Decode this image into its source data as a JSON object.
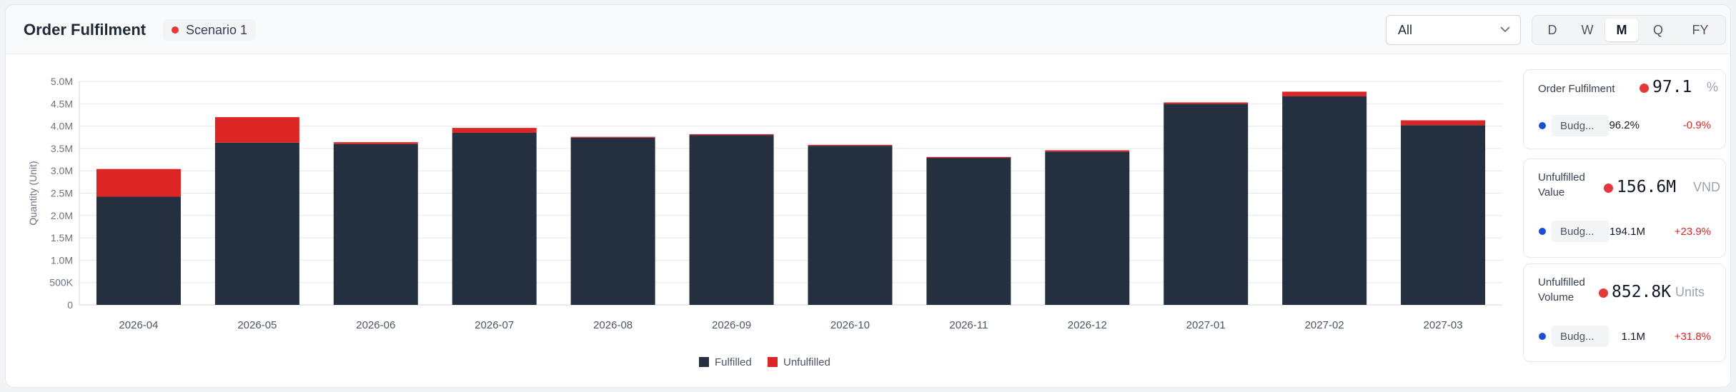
{
  "header": {
    "title": "Order Fulfilment",
    "scenario_label": "Scenario 1",
    "filter_value": "All",
    "periods": [
      "D",
      "W",
      "M",
      "Q",
      "FY"
    ],
    "active_period": "M"
  },
  "colors": {
    "fulfilled": "#243040",
    "unfulfilled": "#dc2626",
    "scenario_dot": "#e5383b",
    "budget_dot": "#1d4ed8",
    "delta_negative": "#dc2626"
  },
  "chart_data": {
    "type": "bar",
    "stacked": true,
    "categories": [
      "2026-04",
      "2026-05",
      "2026-06",
      "2026-07",
      "2026-08",
      "2026-09",
      "2026-10",
      "2026-11",
      "2026-12",
      "2027-01",
      "2027-02",
      "2027-03"
    ],
    "series": [
      {
        "name": "Fulfilled",
        "color": "#243040",
        "values": [
          2.42,
          3.63,
          3.6,
          3.85,
          3.74,
          3.8,
          3.56,
          3.29,
          3.43,
          4.5,
          4.67,
          4.02
        ]
      },
      {
        "name": "Unfulfilled",
        "color": "#dc2626",
        "values": [
          0.62,
          0.57,
          0.04,
          0.11,
          0.02,
          0.02,
          0.02,
          0.02,
          0.03,
          0.03,
          0.1,
          0.11
        ]
      }
    ],
    "ylabel": "Quantity (Unit)",
    "ylim": [
      0,
      5
    ],
    "yticks": [
      "0",
      "500K",
      "1.0M",
      "1.5M",
      "2.0M",
      "2.5M",
      "3.0M",
      "3.5M",
      "4.0M",
      "4.5M",
      "5.0M"
    ],
    "grid": true,
    "legend_position": "bottom-center"
  },
  "kpis": [
    {
      "label": "Order Fulfilment",
      "value": "97.1",
      "unit": "%",
      "budget_label": "Budg...",
      "budget_value": "96.2%",
      "delta": "-0.9%"
    },
    {
      "label": "Unfulfilled Value",
      "value": "156.6M",
      "unit": "VND",
      "budget_label": "Budg...",
      "budget_value": "194.1M",
      "delta": "+23.9%"
    },
    {
      "label": "Unfulfilled Volume",
      "value": "852.8K",
      "unit": "Units",
      "budget_label": "Budg...",
      "budget_value": "1.1M",
      "delta": "+31.8%"
    }
  ]
}
